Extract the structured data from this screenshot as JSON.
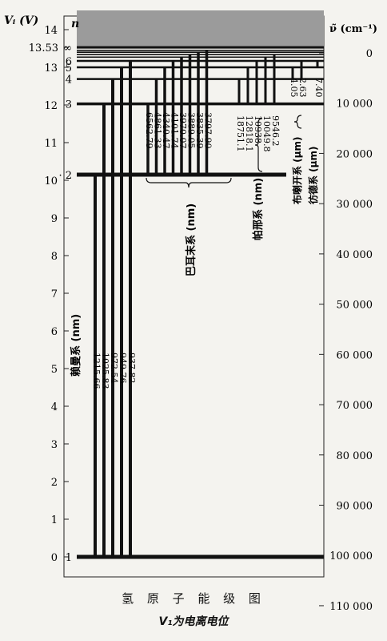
{
  "axes": {
    "left_label": "Vᵢ (V)",
    "n_label": "n",
    "right_label": "ν̃ (cm⁻¹)"
  },
  "left_ticks": [
    "0",
    "1",
    "2",
    "3",
    "4",
    "5",
    "6",
    "7",
    "8",
    "9",
    "10",
    "11",
    "12",
    "13",
    "14"
  ],
  "ionization_label": "13.53",
  "right_ticks": [
    "0",
    "10 000",
    "20 000",
    "30 000",
    "40 000",
    "50 000",
    "60 000",
    "70 000",
    "80 000",
    "90 000",
    "100 000",
    "110 000"
  ],
  "levels": [
    {
      "n": "1",
      "label": "1"
    },
    {
      "n": "2",
      "label": "· 2"
    },
    {
      "n": "3",
      "label": "3"
    },
    {
      "n": "4",
      "label": "4"
    },
    {
      "n": "5",
      "label": "5"
    },
    {
      "n": "6",
      "label": "6"
    },
    {
      "n": "∞",
      "label": "∞"
    }
  ],
  "series": {
    "lyman": {
      "name": "赖曼系 (nm)",
      "lines": [
        "1215.66",
        "1025.83",
        "972.54",
        "949.76",
        "937.82"
      ]
    },
    "balmer": {
      "name": "巴耳末系 (nm)",
      "lines": [
        "6562.79",
        "4861.33",
        "4340.47",
        "4101.74",
        "3970.07",
        "3889.05",
        "3835.39",
        "3797.90"
      ]
    },
    "paschen": {
      "name": "帕邢系 (nm)",
      "lines": [
        "18751.1",
        "12818.1",
        "10938",
        "10049.8",
        "9546.2"
      ]
    },
    "brackett": {
      "name": "布喇开系 (μm)",
      "lines": [
        "4.05",
        "2.63"
      ]
    },
    "pfund": {
      "name": "彷德系 (μm)",
      "lines": [
        "7.40"
      ]
    }
  },
  "caption": {
    "title": "氢 原 子 能 级 图",
    "subtitle": "V₁为电离电位"
  }
}
